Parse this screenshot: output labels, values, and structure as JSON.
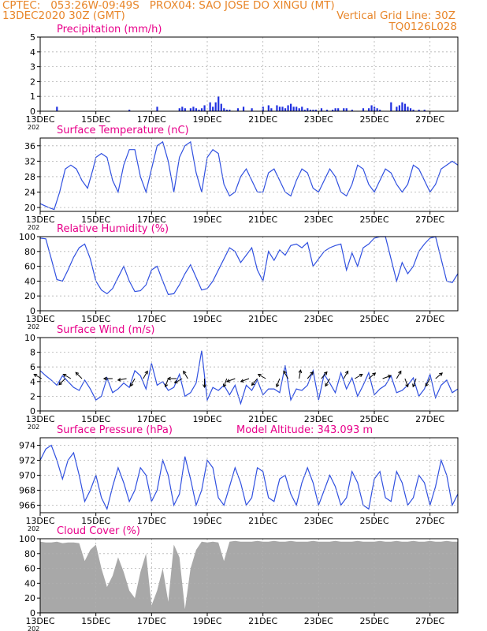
{
  "header": {
    "line1": "CPTEC:   053:26W-09:49S   PROX04: SAO JOSE DO XINGU (MT)",
    "line2": "13DEC2020 30Z (GMT)",
    "line2_right": "Vertical Grid Line: 30Z",
    "line3_right": "TQ0126L028"
  },
  "colors": {
    "header": "#e8862a",
    "title": "#e8008a",
    "line": "#3050e0",
    "bar": "#2030e0",
    "cloud": "#a8a8a8",
    "grid": "#b0b0b0",
    "arrow": "#000000"
  },
  "x_axis": {
    "days": 15,
    "ticks": [
      {
        "day": 0,
        "label": "13DEC"
      },
      {
        "day": 2,
        "label": "15DEC"
      },
      {
        "day": 4,
        "label": "17DEC"
      },
      {
        "day": 6,
        "label": "19DEC"
      },
      {
        "day": 8,
        "label": "21DEC"
      },
      {
        "day": 10,
        "label": "23DEC"
      },
      {
        "day": 12,
        "label": "25DEC"
      },
      {
        "day": 14,
        "label": "27DEC"
      }
    ],
    "year_fragment": "202"
  },
  "chart_data": [
    {
      "type": "bar",
      "title": "Precipitation (mm/h)",
      "ylim": [
        0,
        5
      ],
      "yticks": [
        0,
        1,
        2,
        3,
        4,
        5
      ],
      "grid": true,
      "x": [
        0.6,
        3.2,
        4.2,
        5.0,
        5.1,
        5.2,
        5.4,
        5.5,
        5.6,
        5.7,
        5.8,
        5.9,
        6.1,
        6.2,
        6.3,
        6.4,
        6.5,
        6.6,
        6.7,
        6.8,
        7.1,
        7.3,
        7.6,
        8.0,
        8.2,
        8.3,
        8.5,
        8.6,
        8.7,
        8.8,
        8.9,
        9.0,
        9.1,
        9.2,
        9.3,
        9.4,
        9.5,
        9.6,
        9.7,
        9.8,
        9.9,
        10.1,
        10.3,
        10.5,
        10.6,
        10.7,
        10.9,
        11.0,
        11.2,
        11.6,
        11.8,
        11.9,
        12.0,
        12.1,
        12.2,
        12.6,
        12.8,
        12.9,
        13.0,
        13.1,
        13.2,
        13.3,
        13.4,
        13.6,
        13.8
      ],
      "values": [
        0.3,
        0.1,
        0.3,
        0.2,
        0.3,
        0.2,
        0.2,
        0.3,
        0.2,
        0.1,
        0.2,
        0.4,
        0.6,
        0.3,
        0.6,
        1.0,
        0.5,
        0.2,
        0.1,
        0.1,
        0.2,
        0.3,
        0.2,
        0.3,
        0.4,
        0.2,
        0.4,
        0.3,
        0.3,
        0.2,
        0.4,
        0.5,
        0.3,
        0.3,
        0.2,
        0.3,
        0.1,
        0.2,
        0.1,
        0.1,
        0.1,
        0.2,
        0.1,
        0.1,
        0.2,
        0.2,
        0.2,
        0.2,
        0.1,
        0.2,
        0.2,
        0.4,
        0.3,
        0.2,
        0.1,
        0.6,
        0.3,
        0.4,
        0.6,
        0.5,
        0.3,
        0.2,
        0.1,
        0.1,
        0.1
      ]
    },
    {
      "type": "line",
      "title": "Surface Temperature (nC)",
      "ylim": [
        19,
        38
      ],
      "yticks": [
        20,
        24,
        28,
        32,
        36
      ],
      "grid": true,
      "x": [
        0.0,
        0.3,
        0.5,
        0.7,
        0.9,
        1.1,
        1.3,
        1.5,
        1.7,
        1.9,
        2.0,
        2.2,
        2.4,
        2.6,
        2.8,
        3.0,
        3.2,
        3.4,
        3.6,
        3.8,
        4.0,
        4.2,
        4.4,
        4.6,
        4.8,
        5.0,
        5.2,
        5.4,
        5.6,
        5.8,
        6.0,
        6.2,
        6.4,
        6.6,
        6.8,
        7.0,
        7.2,
        7.4,
        7.6,
        7.8,
        8.0,
        8.2,
        8.4,
        8.6,
        8.8,
        9.0,
        9.2,
        9.4,
        9.6,
        9.8,
        10.0,
        10.2,
        10.4,
        10.6,
        10.8,
        11.0,
        11.2,
        11.4,
        11.6,
        11.8,
        12.0,
        12.2,
        12.4,
        12.6,
        12.8,
        13.0,
        13.2,
        13.4,
        13.6,
        13.8,
        14.0,
        14.2,
        14.4,
        14.6,
        14.8,
        15.0
      ],
      "values": [
        21,
        20,
        19.5,
        24,
        30,
        31,
        30,
        27,
        25,
        30,
        33,
        34,
        33,
        27,
        24,
        31,
        35,
        35,
        28,
        24,
        30,
        36,
        37,
        32,
        24,
        33,
        36,
        37,
        29,
        24,
        33,
        35,
        34,
        26,
        23,
        24,
        28,
        30,
        27,
        24,
        24,
        29,
        30,
        27,
        24,
        23,
        27,
        30,
        29,
        25,
        24,
        27,
        30,
        28,
        24,
        23,
        26,
        31,
        30,
        26,
        24,
        27,
        30,
        29,
        26,
        24,
        26,
        31,
        30,
        27,
        24,
        26,
        30,
        31,
        32,
        31
      ]
    },
    {
      "type": "line",
      "title": "Relative Humidity (%)",
      "ylim": [
        0,
        100
      ],
      "yticks": [
        0,
        20,
        40,
        60,
        80,
        100
      ],
      "grid": true,
      "x": [
        0.0,
        0.2,
        0.4,
        0.6,
        0.8,
        1.0,
        1.2,
        1.4,
        1.6,
        1.8,
        2.0,
        2.2,
        2.4,
        2.6,
        2.8,
        3.0,
        3.2,
        3.4,
        3.6,
        3.8,
        4.0,
        4.2,
        4.4,
        4.6,
        4.8,
        5.0,
        5.2,
        5.4,
        5.6,
        5.8,
        6.0,
        6.2,
        6.4,
        6.6,
        6.8,
        7.0,
        7.2,
        7.4,
        7.6,
        7.8,
        8.0,
        8.2,
        8.4,
        8.6,
        8.8,
        9.0,
        9.2,
        9.4,
        9.6,
        9.8,
        10.0,
        10.2,
        10.4,
        10.6,
        10.8,
        11.0,
        11.2,
        11.4,
        11.6,
        11.8,
        12.0,
        12.2,
        12.4,
        12.6,
        12.8,
        13.0,
        13.2,
        13.4,
        13.6,
        13.8,
        14.0,
        14.2,
        14.4,
        14.6,
        14.8,
        15.0
      ],
      "values": [
        98,
        97,
        70,
        42,
        40,
        55,
        72,
        85,
        90,
        70,
        40,
        28,
        23,
        30,
        45,
        60,
        40,
        26,
        27,
        35,
        55,
        60,
        40,
        22,
        23,
        35,
        50,
        62,
        45,
        28,
        30,
        40,
        55,
        70,
        85,
        80,
        65,
        75,
        85,
        55,
        40,
        80,
        68,
        82,
        75,
        88,
        90,
        85,
        92,
        60,
        70,
        80,
        85,
        88,
        90,
        55,
        78,
        60,
        85,
        90,
        98,
        100,
        100,
        70,
        40,
        65,
        50,
        60,
        80,
        90,
        98,
        100,
        70,
        40,
        38,
        50
      ]
    },
    {
      "type": "line",
      "title": "Surface Wind (m/s)",
      "ylim": [
        0,
        10
      ],
      "yticks": [
        0,
        2,
        4,
        6,
        8,
        10
      ],
      "grid": true,
      "x": [
        0.0,
        0.2,
        0.4,
        0.6,
        0.8,
        1.0,
        1.2,
        1.4,
        1.6,
        1.8,
        2.0,
        2.2,
        2.4,
        2.6,
        2.8,
        3.0,
        3.2,
        3.4,
        3.6,
        3.8,
        4.0,
        4.2,
        4.4,
        4.6,
        4.8,
        5.0,
        5.2,
        5.4,
        5.6,
        5.8,
        6.0,
        6.2,
        6.4,
        6.6,
        6.8,
        7.0,
        7.2,
        7.4,
        7.6,
        7.8,
        8.0,
        8.2,
        8.4,
        8.6,
        8.8,
        9.0,
        9.2,
        9.4,
        9.6,
        9.8,
        10.0,
        10.2,
        10.4,
        10.6,
        10.8,
        11.0,
        11.2,
        11.4,
        11.6,
        11.8,
        12.0,
        12.2,
        12.4,
        12.6,
        12.8,
        13.0,
        13.2,
        13.4,
        13.6,
        13.8,
        14.0,
        14.2,
        14.4,
        14.6,
        14.8,
        15.0
      ],
      "values": [
        5.5,
        4.8,
        4.2,
        3.5,
        4.8,
        4.0,
        3.2,
        2.8,
        4.2,
        3.0,
        1.5,
        2.0,
        4.5,
        2.5,
        3.0,
        3.8,
        3.2,
        5.5,
        4.8,
        3.0,
        6.5,
        3.5,
        4.0,
        2.8,
        3.2,
        5.0,
        2.0,
        2.5,
        3.8,
        8.2,
        1.5,
        3.2,
        2.8,
        3.5,
        2.2,
        3.5,
        1.0,
        3.5,
        2.8,
        4.2,
        2.2,
        3.0,
        3.0,
        2.5,
        6.2,
        1.5,
        3.0,
        2.8,
        3.5,
        5.5,
        1.5,
        5.0,
        3.8,
        2.5,
        5.2,
        3.0,
        4.5,
        2.0,
        3.5,
        5.2,
        2.2,
        3.0,
        3.5,
        4.8,
        2.5,
        2.8,
        3.5,
        4.5,
        2.0,
        3.0,
        5.0,
        1.8,
        3.5,
        4.2,
        2.5,
        3.0
      ]
    },
    {
      "type": "line",
      "title": "Surface Pressure (hPa)",
      "annotation": "Model Altitude: 343.093  m",
      "ylim": [
        965,
        975
      ],
      "yticks": [
        966,
        968,
        970,
        972,
        974
      ],
      "grid": true,
      "x": [
        0.0,
        0.2,
        0.4,
        0.6,
        0.8,
        1.0,
        1.2,
        1.4,
        1.6,
        1.8,
        2.0,
        2.2,
        2.4,
        2.6,
        2.8,
        3.0,
        3.2,
        3.4,
        3.6,
        3.8,
        4.0,
        4.2,
        4.4,
        4.6,
        4.8,
        5.0,
        5.2,
        5.4,
        5.6,
        5.8,
        6.0,
        6.2,
        6.4,
        6.6,
        6.8,
        7.0,
        7.2,
        7.4,
        7.6,
        7.8,
        8.0,
        8.2,
        8.4,
        8.6,
        8.8,
        9.0,
        9.2,
        9.4,
        9.6,
        9.8,
        10.0,
        10.2,
        10.4,
        10.6,
        10.8,
        11.0,
        11.2,
        11.4,
        11.6,
        11.8,
        12.0,
        12.2,
        12.4,
        12.6,
        12.8,
        13.0,
        13.2,
        13.4,
        13.6,
        13.8,
        14.0,
        14.2,
        14.4,
        14.6,
        14.8,
        15.0
      ],
      "values": [
        972,
        973.5,
        974,
        972,
        969.5,
        972,
        973,
        970,
        966.5,
        968,
        970,
        967,
        965.5,
        968.5,
        971,
        969,
        966.5,
        968,
        971,
        970,
        966.5,
        968,
        972,
        970,
        966,
        967.5,
        972.5,
        969.5,
        966,
        968,
        972,
        971,
        967,
        966,
        968.5,
        971,
        969,
        966,
        967,
        971,
        970.5,
        967,
        966.5,
        969.5,
        970,
        967.5,
        966,
        969,
        971,
        969,
        966,
        968,
        970,
        968.5,
        966,
        967,
        970.5,
        969,
        966,
        965.5,
        969.5,
        970.5,
        967,
        966.5,
        970.5,
        969,
        966,
        967,
        970,
        969,
        966,
        968.5,
        972,
        970,
        966,
        967.5
      ]
    },
    {
      "type": "area",
      "title": "Cloud Cover (%)",
      "ylim": [
        0,
        100
      ],
      "yticks": [
        0,
        20,
        40,
        60,
        80,
        100
      ],
      "grid": true,
      "x": [
        0.0,
        0.2,
        0.4,
        0.6,
        0.8,
        1.0,
        1.2,
        1.4,
        1.6,
        1.8,
        2.0,
        2.2,
        2.4,
        2.6,
        2.8,
        3.0,
        3.2,
        3.4,
        3.6,
        3.8,
        4.0,
        4.2,
        4.4,
        4.6,
        4.8,
        5.0,
        5.2,
        5.4,
        5.6,
        5.8,
        6.0,
        6.2,
        6.4,
        6.6,
        6.8,
        7.0,
        7.2,
        7.4,
        7.6,
        7.8,
        8.0,
        8.2,
        8.4,
        8.6,
        8.8,
        9.0,
        9.2,
        9.4,
        9.6,
        9.8,
        10.0,
        10.2,
        10.4,
        10.6,
        10.8,
        11.0,
        11.2,
        11.4,
        11.6,
        11.8,
        12.0,
        12.2,
        12.4,
        12.6,
        12.8,
        13.0,
        13.2,
        13.4,
        13.6,
        13.8,
        14.0,
        14.2,
        14.4,
        14.6,
        14.8,
        15.0
      ],
      "values": [
        96,
        95,
        95,
        96,
        94,
        95,
        95,
        94,
        70,
        85,
        92,
        60,
        35,
        50,
        75,
        55,
        30,
        20,
        55,
        80,
        10,
        30,
        60,
        15,
        92,
        75,
        5,
        60,
        85,
        96,
        95,
        96,
        95,
        70,
        96,
        97,
        96,
        96,
        96,
        97,
        96,
        96,
        97,
        96,
        96,
        97,
        96,
        96,
        96,
        97,
        96,
        96,
        96,
        97,
        96,
        96,
        96,
        97,
        96,
        96,
        96,
        97,
        96,
        96,
        97,
        96,
        96,
        97,
        96,
        96,
        97,
        96,
        96,
        97,
        96,
        96
      ]
    }
  ],
  "wind_arrows": [
    {
      "day": 0.05,
      "dir": 300
    },
    {
      "day": 0.9,
      "dir": 225
    },
    {
      "day": 1.1,
      "dir": 300
    },
    {
      "day": 1.5,
      "dir": 315
    },
    {
      "day": 2.6,
      "dir": 270
    },
    {
      "day": 3.1,
      "dir": 260
    },
    {
      "day": 3.4,
      "dir": 210
    },
    {
      "day": 3.7,
      "dir": 30
    },
    {
      "day": 4.6,
      "dir": 200
    },
    {
      "day": 4.9,
      "dir": 270
    },
    {
      "day": 5.1,
      "dir": 240
    },
    {
      "day": 5.3,
      "dir": 330
    },
    {
      "day": 5.9,
      "dir": 180
    },
    {
      "day": 6.7,
      "dir": 200
    },
    {
      "day": 7.0,
      "dir": 250
    },
    {
      "day": 7.5,
      "dir": 250
    },
    {
      "day": 7.8,
      "dir": 220
    },
    {
      "day": 8.1,
      "dir": 300
    },
    {
      "day": 8.6,
      "dir": 200
    },
    {
      "day": 8.9,
      "dir": 330
    },
    {
      "day": 9.3,
      "dir": 10
    },
    {
      "day": 9.6,
      "dir": 40
    },
    {
      "day": 10.1,
      "dir": 40
    },
    {
      "day": 10.4,
      "dir": 210
    },
    {
      "day": 10.9,
      "dir": 30
    },
    {
      "day": 11.3,
      "dir": 60
    },
    {
      "day": 11.8,
      "dir": 50
    },
    {
      "day": 12.3,
      "dir": 70
    },
    {
      "day": 12.8,
      "dir": 30
    },
    {
      "day": 13.1,
      "dir": 160
    },
    {
      "day": 13.5,
      "dir": 200
    },
    {
      "day": 14.0,
      "dir": 210
    },
    {
      "day": 14.2,
      "dir": 50
    }
  ]
}
